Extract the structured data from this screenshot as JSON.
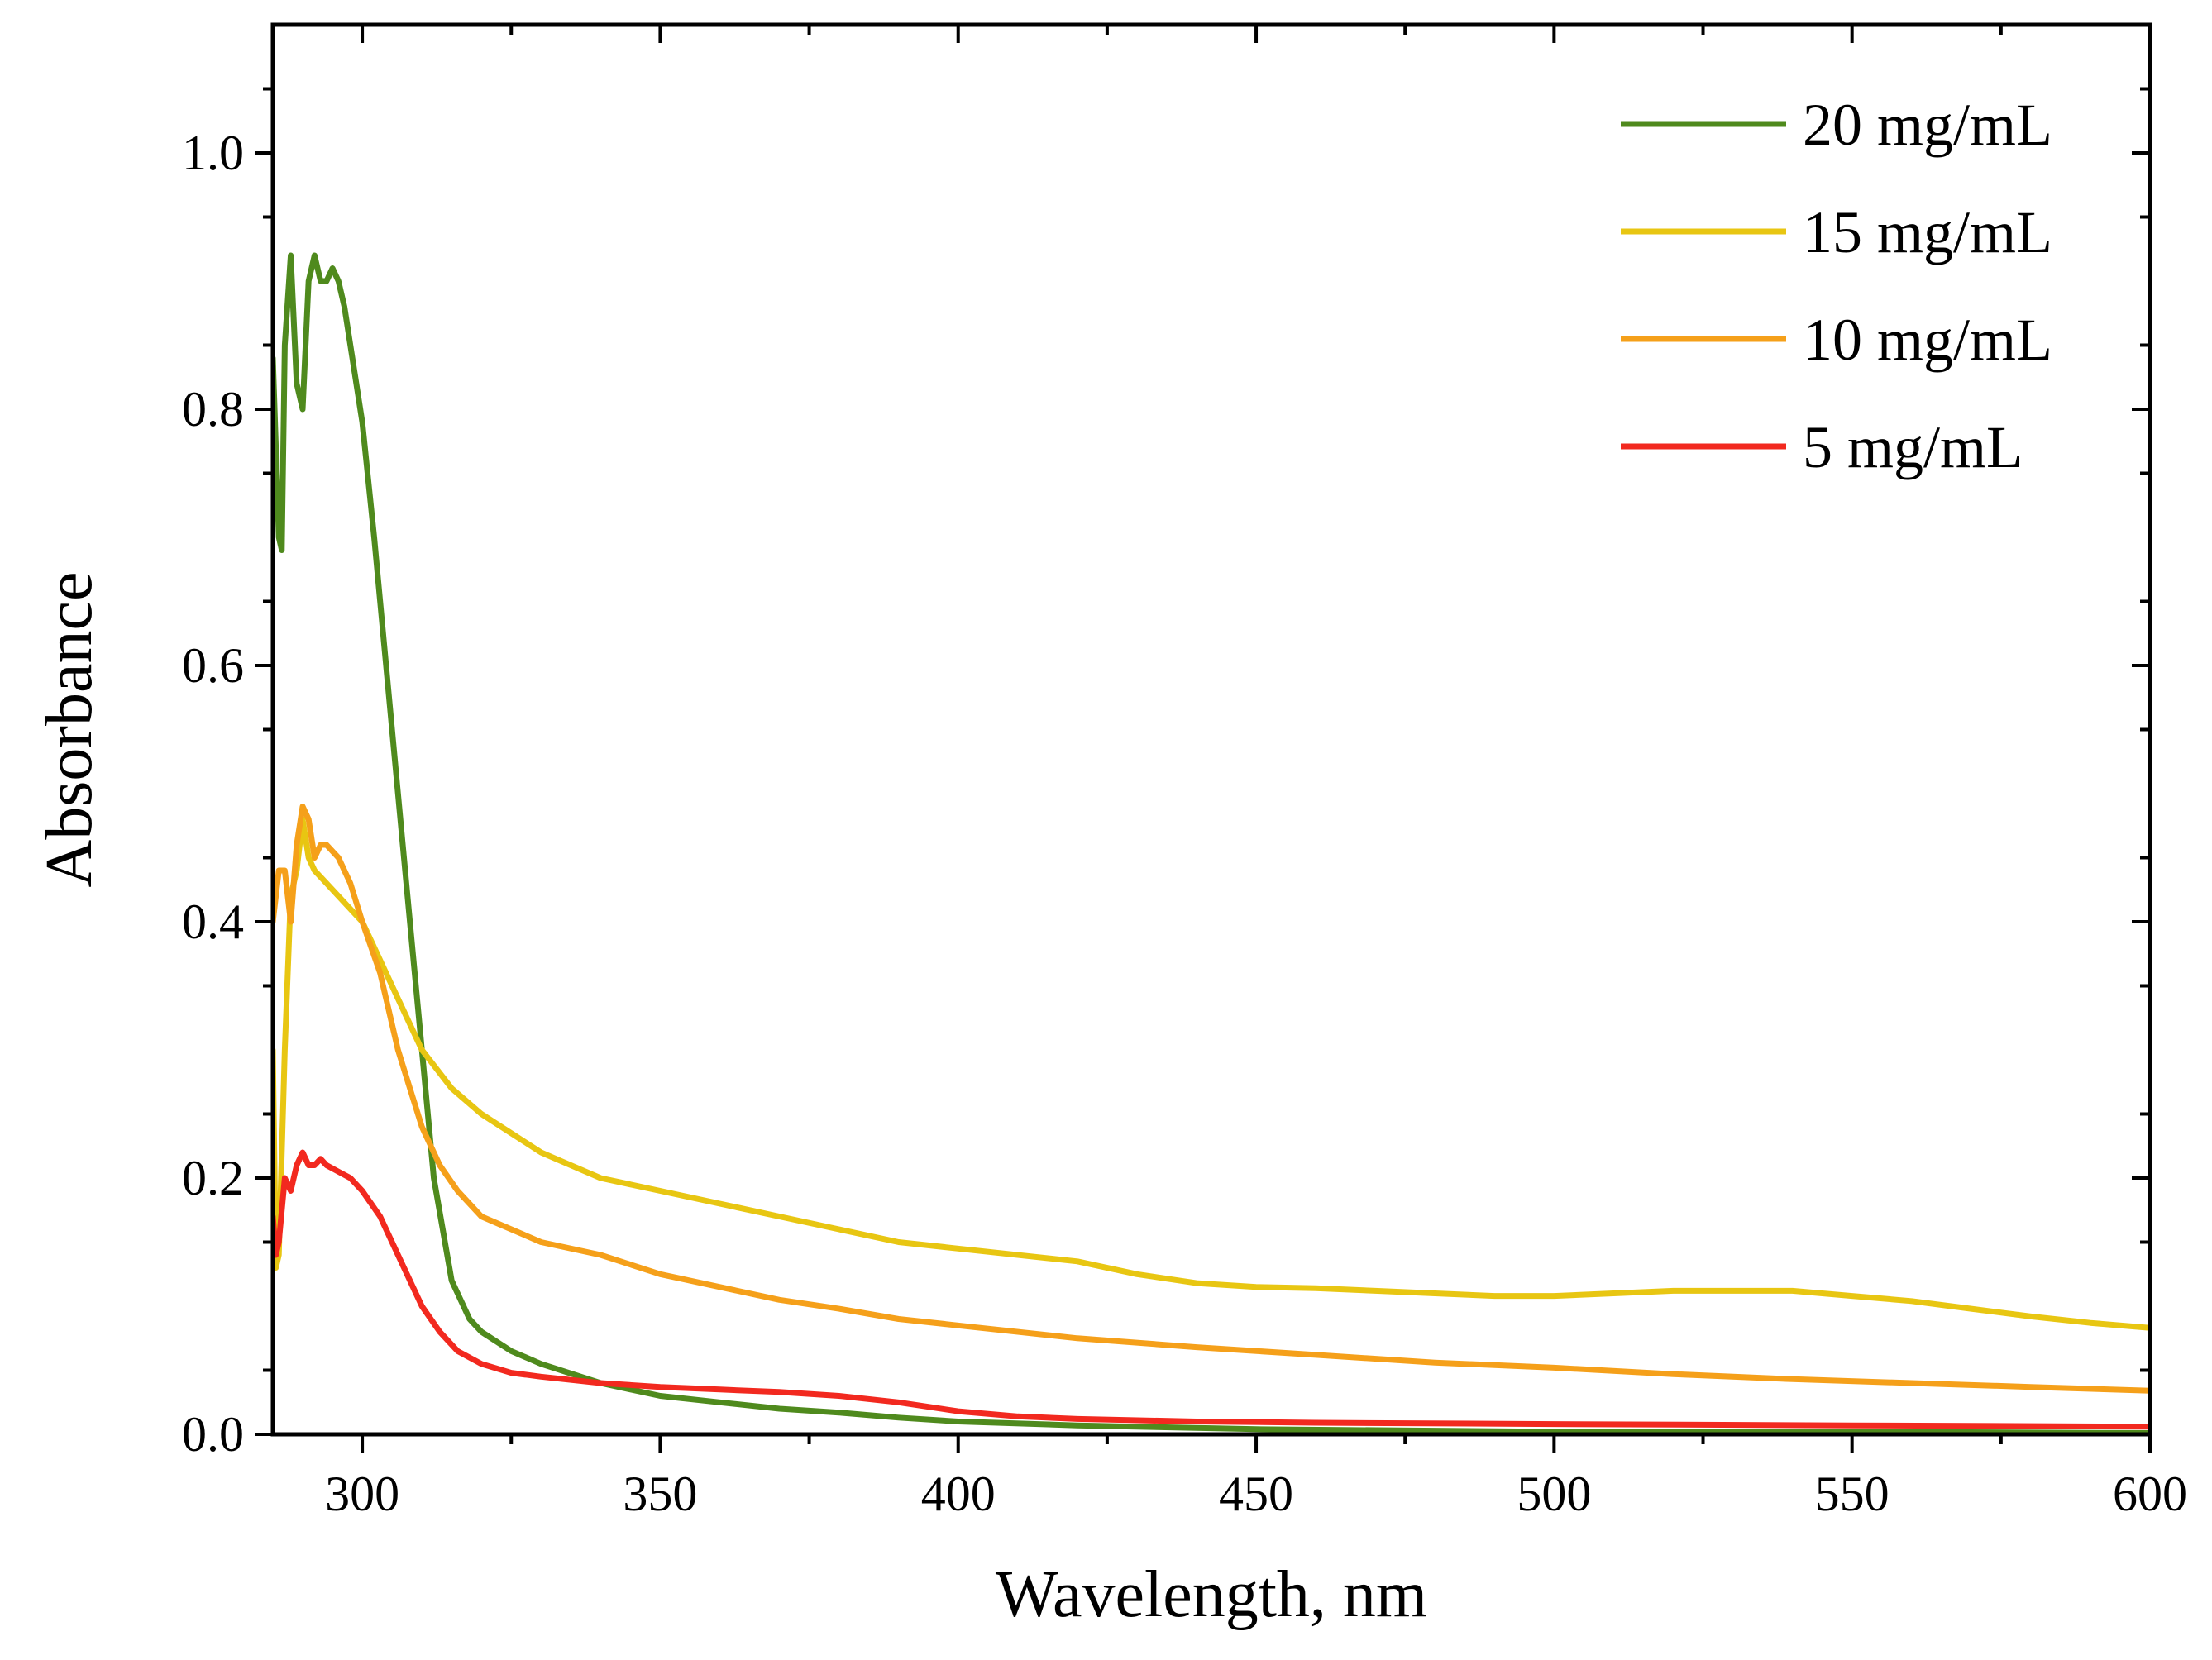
{
  "chart_data": {
    "type": "line",
    "title": "",
    "xlabel": "Wavelength, nm",
    "ylabel": "Absorbance",
    "xlim": [
      285,
      600
    ],
    "ylim": [
      0,
      1.1
    ],
    "x_ticks": [
      300,
      350,
      400,
      450,
      500,
      550,
      600
    ],
    "x_tick_labels": [
      "300",
      "350",
      "400",
      "450",
      "500",
      "550",
      "600"
    ],
    "y_ticks": [
      0,
      0.2,
      0.4,
      0.6,
      0.8,
      1.0
    ],
    "y_tick_labels": [
      "0.0",
      "0.2",
      "0.4",
      "0.6",
      "0.8",
      "1.0"
    ],
    "grid": false,
    "legend_position": "top-right",
    "series": [
      {
        "name": "20 mg/mL",
        "color": "#4f8a1d",
        "points": [
          [
            285,
            0.84
          ],
          [
            286,
            0.7
          ],
          [
            286.5,
            0.69
          ],
          [
            287,
            0.85
          ],
          [
            288,
            0.92
          ],
          [
            289,
            0.82
          ],
          [
            290,
            0.8
          ],
          [
            291,
            0.9
          ],
          [
            292,
            0.92
          ],
          [
            293,
            0.9
          ],
          [
            294,
            0.9
          ],
          [
            295,
            0.91
          ],
          [
            296,
            0.9
          ],
          [
            297,
            0.88
          ],
          [
            298,
            0.85
          ],
          [
            300,
            0.79
          ],
          [
            302,
            0.7
          ],
          [
            305,
            0.55
          ],
          [
            308,
            0.4
          ],
          [
            310,
            0.3
          ],
          [
            312,
            0.2
          ],
          [
            315,
            0.12
          ],
          [
            318,
            0.09
          ],
          [
            320,
            0.08
          ],
          [
            325,
            0.065
          ],
          [
            330,
            0.055
          ],
          [
            340,
            0.04
          ],
          [
            350,
            0.03
          ],
          [
            360,
            0.025
          ],
          [
            370,
            0.02
          ],
          [
            380,
            0.017
          ],
          [
            390,
            0.013
          ],
          [
            400,
            0.01
          ],
          [
            420,
            0.007
          ],
          [
            450,
            0.004
          ],
          [
            500,
            0.002
          ],
          [
            550,
            0.002
          ],
          [
            600,
            0.001
          ]
        ]
      },
      {
        "name": "15 mg/mL",
        "color": "#e8c612",
        "points": [
          [
            285,
            0.3
          ],
          [
            285.5,
            0.13
          ],
          [
            286,
            0.14
          ],
          [
            287,
            0.3
          ],
          [
            288,
            0.42
          ],
          [
            289,
            0.44
          ],
          [
            290,
            0.48
          ],
          [
            291,
            0.45
          ],
          [
            292,
            0.44
          ],
          [
            294,
            0.43
          ],
          [
            296,
            0.42
          ],
          [
            298,
            0.41
          ],
          [
            300,
            0.4
          ],
          [
            303,
            0.37
          ],
          [
            306,
            0.34
          ],
          [
            310,
            0.3
          ],
          [
            315,
            0.27
          ],
          [
            320,
            0.25
          ],
          [
            330,
            0.22
          ],
          [
            340,
            0.2
          ],
          [
            350,
            0.19
          ],
          [
            360,
            0.18
          ],
          [
            370,
            0.17
          ],
          [
            380,
            0.16
          ],
          [
            390,
            0.15
          ],
          [
            400,
            0.145
          ],
          [
            420,
            0.135
          ],
          [
            430,
            0.125
          ],
          [
            440,
            0.118
          ],
          [
            450,
            0.115
          ],
          [
            460,
            0.114
          ],
          [
            470,
            0.112
          ],
          [
            480,
            0.11
          ],
          [
            490,
            0.108
          ],
          [
            500,
            0.108
          ],
          [
            510,
            0.11
          ],
          [
            520,
            0.112
          ],
          [
            530,
            0.112
          ],
          [
            540,
            0.112
          ],
          [
            550,
            0.108
          ],
          [
            560,
            0.104
          ],
          [
            570,
            0.098
          ],
          [
            580,
            0.092
          ],
          [
            590,
            0.087
          ],
          [
            600,
            0.083
          ]
        ]
      },
      {
        "name": "10 mg/mL",
        "color": "#f5a01a",
        "points": [
          [
            285,
            0.4
          ],
          [
            286,
            0.44
          ],
          [
            287,
            0.44
          ],
          [
            288,
            0.4
          ],
          [
            289,
            0.46
          ],
          [
            290,
            0.49
          ],
          [
            291,
            0.48
          ],
          [
            292,
            0.45
          ],
          [
            293,
            0.46
          ],
          [
            294,
            0.46
          ],
          [
            296,
            0.45
          ],
          [
            298,
            0.43
          ],
          [
            300,
            0.4
          ],
          [
            303,
            0.36
          ],
          [
            306,
            0.3
          ],
          [
            308,
            0.27
          ],
          [
            310,
            0.24
          ],
          [
            313,
            0.21
          ],
          [
            316,
            0.19
          ],
          [
            320,
            0.17
          ],
          [
            325,
            0.16
          ],
          [
            330,
            0.15
          ],
          [
            340,
            0.14
          ],
          [
            350,
            0.125
          ],
          [
            360,
            0.115
          ],
          [
            370,
            0.105
          ],
          [
            380,
            0.098
          ],
          [
            390,
            0.09
          ],
          [
            400,
            0.085
          ],
          [
            420,
            0.075
          ],
          [
            440,
            0.068
          ],
          [
            460,
            0.062
          ],
          [
            480,
            0.056
          ],
          [
            500,
            0.052
          ],
          [
            520,
            0.047
          ],
          [
            540,
            0.043
          ],
          [
            560,
            0.04
          ],
          [
            580,
            0.037
          ],
          [
            600,
            0.034
          ]
        ]
      },
      {
        "name": "5 mg/mL",
        "color": "#f2291f",
        "points": [
          [
            285,
            0.17
          ],
          [
            285.5,
            0.14
          ],
          [
            286,
            0.15
          ],
          [
            287,
            0.2
          ],
          [
            288,
            0.19
          ],
          [
            289,
            0.21
          ],
          [
            290,
            0.22
          ],
          [
            291,
            0.21
          ],
          [
            292,
            0.21
          ],
          [
            293,
            0.215
          ],
          [
            294,
            0.21
          ],
          [
            296,
            0.205
          ],
          [
            298,
            0.2
          ],
          [
            300,
            0.19
          ],
          [
            303,
            0.17
          ],
          [
            306,
            0.14
          ],
          [
            310,
            0.1
          ],
          [
            313,
            0.08
          ],
          [
            316,
            0.065
          ],
          [
            320,
            0.055
          ],
          [
            325,
            0.048
          ],
          [
            330,
            0.045
          ],
          [
            340,
            0.04
          ],
          [
            350,
            0.037
          ],
          [
            360,
            0.035
          ],
          [
            370,
            0.033
          ],
          [
            380,
            0.03
          ],
          [
            390,
            0.025
          ],
          [
            400,
            0.018
          ],
          [
            410,
            0.014
          ],
          [
            420,
            0.012
          ],
          [
            440,
            0.01
          ],
          [
            460,
            0.009
          ],
          [
            500,
            0.008
          ],
          [
            550,
            0.007
          ],
          [
            600,
            0.006
          ]
        ]
      }
    ]
  }
}
